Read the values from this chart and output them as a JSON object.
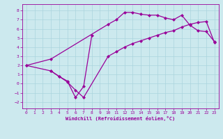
{
  "xlabel": "Windchill (Refroidissement éolien,°C)",
  "ylabel": "",
  "background_color": "#cce9ee",
  "grid_color": "#aad4dd",
  "line_color": "#990099",
  "marker": "D",
  "markersize": 2.0,
  "linewidth": 0.9,
  "xlim": [
    -0.5,
    23.5
  ],
  "ylim": [
    -2.7,
    8.7
  ],
  "xticks": [
    0,
    1,
    2,
    3,
    4,
    5,
    6,
    7,
    8,
    9,
    10,
    11,
    12,
    13,
    14,
    15,
    16,
    17,
    18,
    19,
    20,
    21,
    22,
    23
  ],
  "yticks": [
    -2,
    -1,
    0,
    1,
    2,
    3,
    4,
    5,
    6,
    7,
    8
  ],
  "line1_x": [
    0,
    3,
    10,
    11,
    12,
    13,
    14,
    15,
    16,
    17,
    18,
    19,
    20,
    21,
    22,
    23
  ],
  "line1_y": [
    2.0,
    2.7,
    6.5,
    7.0,
    7.8,
    7.8,
    7.6,
    7.5,
    7.5,
    7.2,
    7.0,
    7.5,
    6.4,
    5.8,
    5.7,
    4.6
  ],
  "line2_x": [
    0,
    3,
    4,
    5,
    6,
    7,
    10,
    11,
    12,
    13,
    14,
    15,
    16,
    17,
    18,
    19,
    20,
    21,
    22,
    23
  ],
  "line2_y": [
    2.0,
    1.4,
    0.8,
    0.2,
    -0.7,
    -1.5,
    3.0,
    3.5,
    4.0,
    4.4,
    4.7,
    5.0,
    5.3,
    5.6,
    5.8,
    6.2,
    6.5,
    6.7,
    6.8,
    4.5
  ],
  "line3_x": [
    3,
    4,
    5,
    6,
    7,
    8
  ],
  "line3_y": [
    1.4,
    0.8,
    0.3,
    -1.5,
    -0.3,
    5.3
  ]
}
